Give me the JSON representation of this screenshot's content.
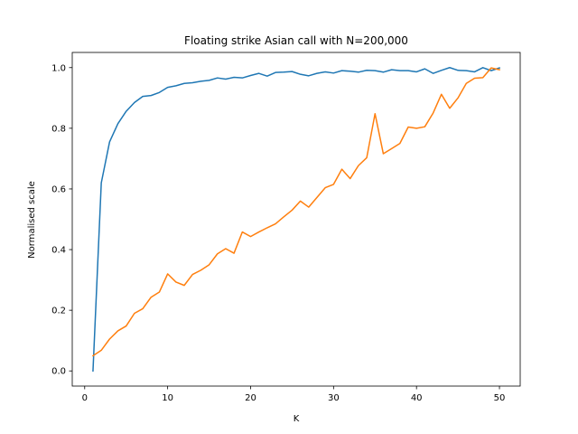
{
  "chart_data": {
    "type": "line",
    "title": "Floating strike Asian call with N=200,000",
    "xlabel": "K",
    "ylabel": "Normalised scale",
    "xlim": [
      -1.5,
      52.5
    ],
    "ylim": [
      -0.05,
      1.05
    ],
    "xticks": [
      0,
      10,
      20,
      30,
      40,
      50
    ],
    "yticks": [
      0.0,
      0.2,
      0.4,
      0.6,
      0.8,
      1.0
    ],
    "ytick_labels": [
      "0.0",
      "0.2",
      "0.4",
      "0.6",
      "0.8",
      "1.0"
    ],
    "grid": false,
    "x": [
      1,
      2,
      3,
      4,
      5,
      6,
      7,
      8,
      9,
      10,
      11,
      12,
      13,
      14,
      15,
      16,
      17,
      18,
      19,
      20,
      21,
      22,
      23,
      24,
      25,
      26,
      27,
      28,
      29,
      30,
      31,
      32,
      33,
      34,
      35,
      36,
      37,
      38,
      39,
      40,
      41,
      42,
      43,
      44,
      45,
      46,
      47,
      48,
      49,
      50
    ],
    "series": [
      {
        "color": "#1f77b4",
        "values": [
          0.0,
          0.62,
          0.755,
          0.815,
          0.856,
          0.885,
          0.905,
          0.908,
          0.918,
          0.935,
          0.94,
          0.948,
          0.95,
          0.955,
          0.958,
          0.966,
          0.962,
          0.968,
          0.966,
          0.974,
          0.981,
          0.972,
          0.984,
          0.985,
          0.987,
          0.978,
          0.973,
          0.981,
          0.986,
          0.982,
          0.99,
          0.988,
          0.985,
          0.991,
          0.99,
          0.985,
          0.993,
          0.99,
          0.99,
          0.986,
          0.996,
          0.981,
          0.991,
          1.0,
          0.991,
          0.99,
          0.986,
          1.0,
          0.99,
          0.999
        ]
      },
      {
        "color": "#ff7f0e",
        "values": [
          0.05,
          0.068,
          0.105,
          0.132,
          0.148,
          0.19,
          0.205,
          0.243,
          0.26,
          0.32,
          0.293,
          0.282,
          0.318,
          0.332,
          0.35,
          0.386,
          0.403,
          0.388,
          0.458,
          0.443,
          0.458,
          0.472,
          0.485,
          0.508,
          0.53,
          0.56,
          0.54,
          0.572,
          0.604,
          0.615,
          0.665,
          0.634,
          0.677,
          0.703,
          0.848,
          0.716,
          0.733,
          0.75,
          0.804,
          0.8,
          0.805,
          0.85,
          0.912,
          0.866,
          0.9,
          0.948,
          0.965,
          0.967,
          0.999,
          0.993
        ]
      }
    ]
  }
}
